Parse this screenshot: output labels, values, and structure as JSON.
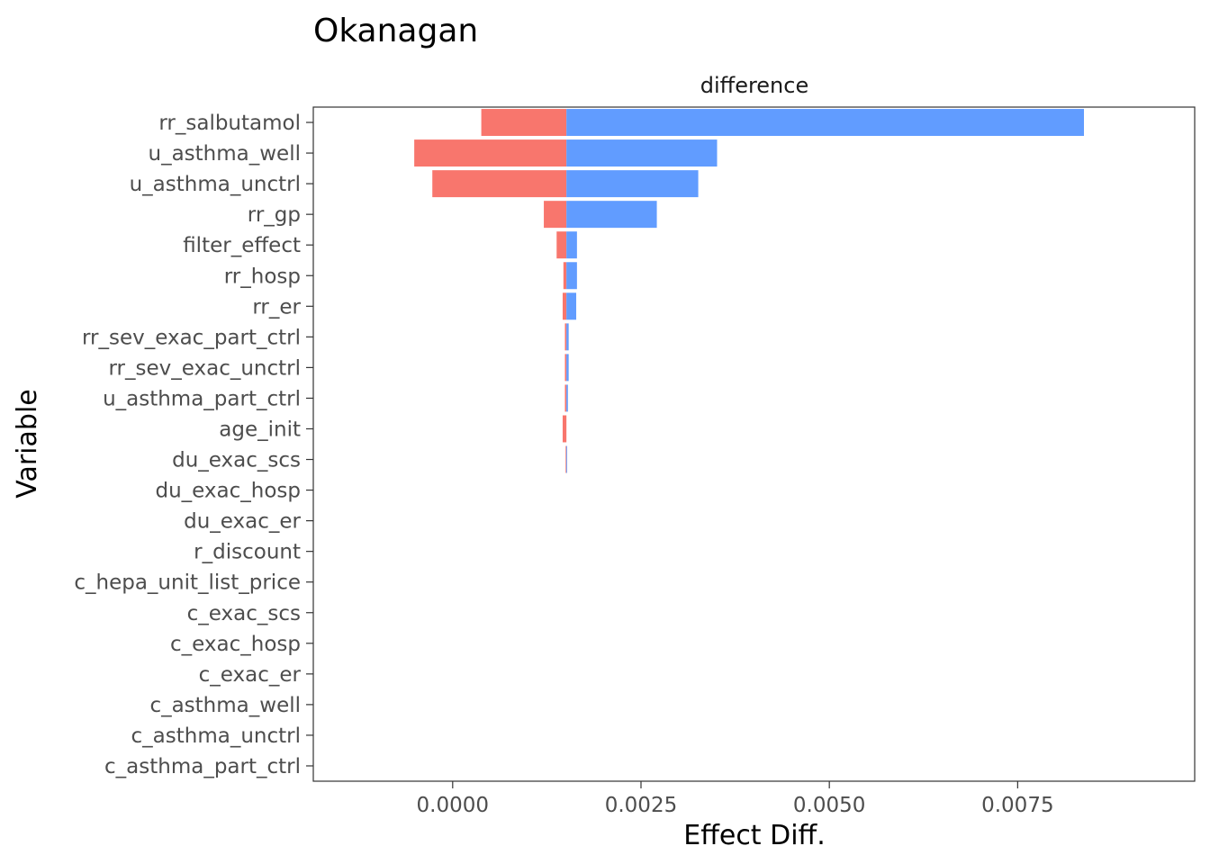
{
  "chart_data": {
    "type": "bar",
    "orientation": "horizontal",
    "style": "tornado",
    "title": "Okanagan",
    "facet_label": "difference",
    "xlabel": "Effect Diff.",
    "ylabel": "Variable",
    "xlim": [
      -0.00185,
      0.00985
    ],
    "xticks": [
      0.0,
      0.0025,
      0.005,
      0.0075
    ],
    "xtick_labels": [
      "0.0000",
      "0.0025",
      "0.0050",
      "0.0075"
    ],
    "baseline": 0.00151,
    "grid": false,
    "legend": "none",
    "colors": {
      "low": "#F8766D",
      "high": "#619CFF"
    },
    "categories": [
      "rr_salbutamol",
      "u_asthma_well",
      "u_asthma_unctrl",
      "rr_gp",
      "filter_effect",
      "rr_hosp",
      "rr_er",
      "rr_sev_exac_part_ctrl",
      "rr_sev_exac_unctrl",
      "u_asthma_part_ctrl",
      "age_init",
      "du_exac_scs",
      "du_exac_hosp",
      "du_exac_er",
      "r_discount",
      "c_hepa_unit_list_price",
      "c_exac_scs",
      "c_exac_hosp",
      "c_exac_er",
      "c_asthma_well",
      "c_asthma_unctrl",
      "c_asthma_part_ctrl"
    ],
    "series": [
      {
        "key": "low",
        "values": [
          0.00038,
          -0.00051,
          -0.00027,
          0.00121,
          0.00138,
          0.00147,
          0.00146,
          0.00149,
          0.00149,
          0.00149,
          0.00146,
          0.0015,
          0.00151,
          0.00151,
          0.00151,
          0.00151,
          0.00151,
          0.00151,
          0.00151,
          0.00151,
          0.00151,
          0.00151
        ]
      },
      {
        "key": "high",
        "values": [
          0.00838,
          0.00351,
          0.00326,
          0.00271,
          0.00165,
          0.00165,
          0.00164,
          0.00154,
          0.00154,
          0.00153,
          0.00151,
          0.00152,
          0.00151,
          0.00151,
          0.00151,
          0.00151,
          0.00151,
          0.00151,
          0.00151,
          0.00151,
          0.00151,
          0.00151
        ]
      }
    ]
  }
}
